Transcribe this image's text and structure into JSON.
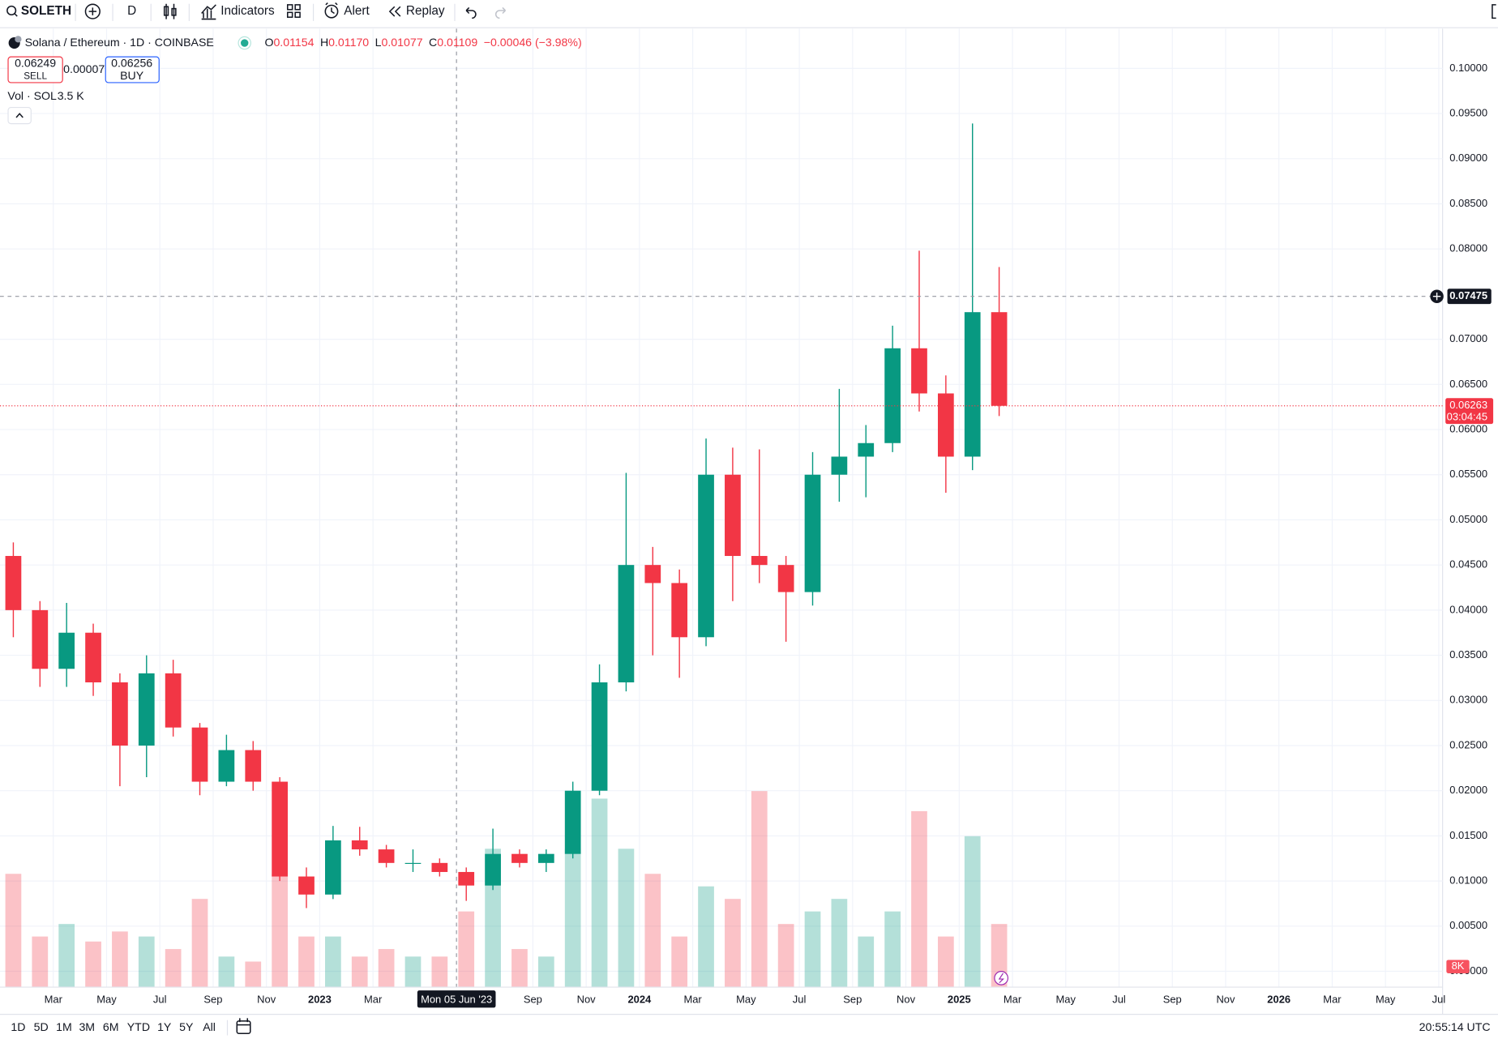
{
  "toolbar": {
    "symbol": "SOLETH",
    "interval": "D",
    "indicators": "Indicators",
    "alert": "Alert",
    "replay": "Replay"
  },
  "legend": {
    "title": "Solana / Ethereum · 1D · COINBASE",
    "ohlc": [
      {
        "label": "O",
        "value": 0.01154
      },
      {
        "label": "H",
        "value": 0.0117
      },
      {
        "label": "L",
        "value": 0.01077
      },
      {
        "label": "C",
        "value": 0.01109
      }
    ],
    "ohlc_labels": [
      "0.01154",
      "0.01170",
      "0.01077",
      "0.01109"
    ],
    "change": "−0.00046 (−3.98%)",
    "sell": {
      "price": 0.06249,
      "label": "SELL"
    },
    "spread": 7e-05,
    "buy": {
      "price": 0.06256,
      "label": "BUY"
    },
    "volume_name": "Vol · SOL",
    "volume_value": "3.5 K"
  },
  "chart_data": {
    "type": "candlestick",
    "x": [
      "2022-01",
      "2022-02",
      "2022-03",
      "2022-04",
      "2022-05",
      "2022-06",
      "2022-07",
      "2022-08",
      "2022-09",
      "2022-10",
      "2022-11",
      "2022-12",
      "2023-01",
      "2023-02",
      "2023-03",
      "2023-04",
      "2023-05",
      "2023-06",
      "2023-07",
      "2023-08",
      "2023-09",
      "2023-10",
      "2023-11",
      "2023-12",
      "2024-01",
      "2024-02",
      "2024-03",
      "2024-04",
      "2024-05",
      "2024-06",
      "2024-07",
      "2024-08",
      "2024-09",
      "2024-10",
      "2024-11",
      "2024-12",
      "2025-01",
      "2025-02"
    ],
    "open": [
      0.046,
      0.04,
      0.0335,
      0.0375,
      0.032,
      0.025,
      0.033,
      0.027,
      0.021,
      0.0245,
      0.021,
      0.0105,
      0.0085,
      0.0145,
      0.0135,
      0.012,
      0.012,
      0.011,
      0.0095,
      0.013,
      0.012,
      0.013,
      0.02,
      0.032,
      0.045,
      0.043,
      0.037,
      0.055,
      0.046,
      0.045,
      0.042,
      0.055,
      0.057,
      0.0585,
      0.069,
      0.064,
      0.057,
      0.073
    ],
    "high": [
      0.0475,
      0.041,
      0.0408,
      0.0385,
      0.033,
      0.035,
      0.0345,
      0.0275,
      0.0262,
      0.0255,
      0.0215,
      0.0115,
      0.0161,
      0.016,
      0.014,
      0.0135,
      0.0125,
      0.0115,
      0.0158,
      0.0135,
      0.0135,
      0.021,
      0.034,
      0.0552,
      0.047,
      0.0445,
      0.059,
      0.058,
      0.0578,
      0.046,
      0.0575,
      0.0645,
      0.0605,
      0.0715,
      0.0798,
      0.066,
      0.0939,
      0.078
    ],
    "low": [
      0.037,
      0.0315,
      0.0315,
      0.0305,
      0.0205,
      0.0215,
      0.026,
      0.0195,
      0.0205,
      0.02,
      0.01,
      0.007,
      0.008,
      0.0128,
      0.0115,
      0.011,
      0.0105,
      0.0078,
      0.009,
      0.0115,
      0.011,
      0.0125,
      0.0195,
      0.031,
      0.035,
      0.0325,
      0.036,
      0.041,
      0.043,
      0.0365,
      0.0405,
      0.052,
      0.0525,
      0.0575,
      0.062,
      0.053,
      0.0555,
      0.0615
    ],
    "close": [
      0.04,
      0.0335,
      0.0375,
      0.032,
      0.025,
      0.033,
      0.027,
      0.021,
      0.0245,
      0.021,
      0.0105,
      0.0085,
      0.0145,
      0.0135,
      0.012,
      0.012,
      0.011,
      0.0095,
      0.013,
      0.012,
      0.013,
      0.02,
      0.032,
      0.045,
      0.043,
      0.037,
      0.055,
      0.046,
      0.045,
      0.042,
      0.055,
      0.057,
      0.0585,
      0.069,
      0.064,
      0.057,
      0.073,
      0.06263
    ],
    "volume": [
      45,
      20,
      25,
      18,
      22,
      20,
      15,
      35,
      12,
      10,
      45,
      20,
      20,
      12,
      15,
      12,
      12,
      30,
      55,
      15,
      12,
      55,
      75,
      55,
      45,
      20,
      40,
      35,
      78,
      25,
      30,
      35,
      20,
      30,
      70,
      20,
      60,
      25
    ],
    "up_color": "#089981",
    "down_color": "#f23645",
    "xlim": [
      "2022-01",
      "2026-07"
    ],
    "ylim": [
      -0.0017,
      0.1044
    ],
    "xticks": [
      {
        "value": "2022-03",
        "label": "Mar"
      },
      {
        "value": "2022-05",
        "label": "May"
      },
      {
        "value": "2022-07",
        "label": "Jul"
      },
      {
        "value": "2022-09",
        "label": "Sep"
      },
      {
        "value": "2022-11",
        "label": "Nov"
      },
      {
        "value": "2023-01",
        "label": "2023"
      },
      {
        "value": "2023-03",
        "label": "Mar"
      },
      {
        "value": "2023-09",
        "label": "Sep"
      },
      {
        "value": "2023-11",
        "label": "Nov"
      },
      {
        "value": "2024-01",
        "label": "2024"
      },
      {
        "value": "2024-03",
        "label": "Mar"
      },
      {
        "value": "2024-05",
        "label": "May"
      },
      {
        "value": "2024-07",
        "label": "Jul"
      },
      {
        "value": "2024-09",
        "label": "Sep"
      },
      {
        "value": "2024-11",
        "label": "Nov"
      },
      {
        "value": "2025-01",
        "label": "2025"
      },
      {
        "value": "2025-03",
        "label": "Mar"
      },
      {
        "value": "2025-05",
        "label": "May"
      },
      {
        "value": "2025-07",
        "label": "Jul"
      },
      {
        "value": "2025-09",
        "label": "Sep"
      },
      {
        "value": "2025-11",
        "label": "Nov"
      },
      {
        "value": "2026-01",
        "label": "2026"
      },
      {
        "value": "2026-03",
        "label": "Mar"
      },
      {
        "value": "2026-05",
        "label": "May"
      },
      {
        "value": "2026-07",
        "label": "Jul"
      }
    ],
    "yticks": [
      {
        "value": 0,
        "label": "0.00000"
      },
      {
        "value": 0.005,
        "label": "0.00500"
      },
      {
        "value": 0.01,
        "label": "0.01000"
      },
      {
        "value": 0.015,
        "label": "0.01500"
      },
      {
        "value": 0.02,
        "label": "0.02000"
      },
      {
        "value": 0.025,
        "label": "0.02500"
      },
      {
        "value": 0.03,
        "label": "0.03000"
      },
      {
        "value": 0.035,
        "label": "0.03500"
      },
      {
        "value": 0.04,
        "label": "0.04000"
      },
      {
        "value": 0.045,
        "label": "0.04500"
      },
      {
        "value": 0.05,
        "label": "0.05000"
      },
      {
        "value": 0.055,
        "label": "0.05500"
      },
      {
        "value": 0.06,
        "label": "0.06000"
      },
      {
        "value": 0.065,
        "label": "0.06500"
      },
      {
        "value": 0.07,
        "label": "0.07000"
      },
      {
        "value": 0.08,
        "label": "0.08000"
      },
      {
        "value": 0.085,
        "label": "0.08500"
      },
      {
        "value": 0.09,
        "label": "0.09000"
      },
      {
        "value": 0.095,
        "label": "0.09500"
      },
      {
        "value": 0.1,
        "label": "0.10000"
      }
    ],
    "grid": true,
    "last_price": 0.06263,
    "countdown": "03:04:45",
    "last_volume": {
      "value": 8,
      "label": "8K"
    },
    "crosshair": {
      "x": "2023-06-05",
      "x_label": "Mon 05 Jun '23",
      "y": 0.07475
    }
  },
  "ranges": [
    "1D",
    "5D",
    "1M",
    "3M",
    "6M",
    "YTD",
    "1Y",
    "5Y",
    "All"
  ],
  "clock": "20:55:14 UTC"
}
